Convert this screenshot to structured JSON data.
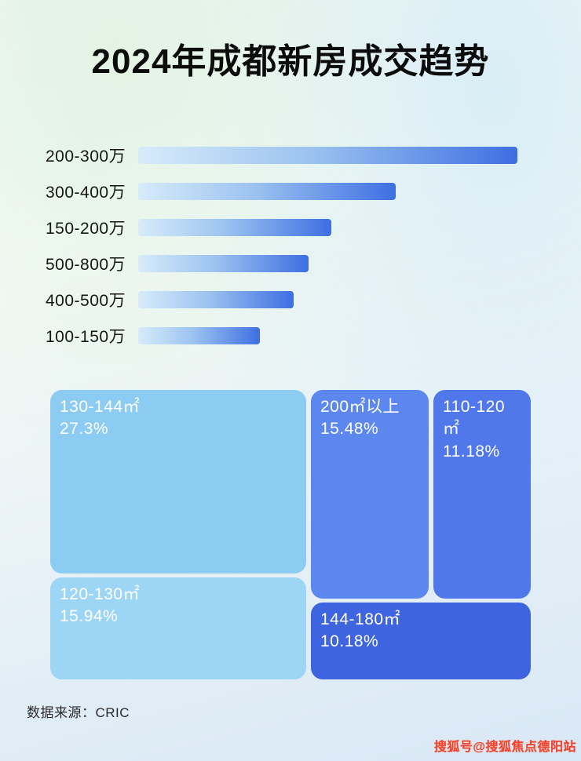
{
  "page": {
    "title": "2024年成都新房成交趋势",
    "source": "数据来源：CRIC",
    "watermark": "搜狐号@搜狐焦点德阳站"
  },
  "chart_data": [
    {
      "type": "bar",
      "orientation": "horizontal",
      "title": "2024年成都新房成交趋势",
      "categories": [
        "200-300万",
        "300-400万",
        "150-200万",
        "500-800万",
        "400-500万",
        "100-150万"
      ],
      "values": [
        100,
        68,
        51,
        45,
        41,
        32
      ],
      "value_note": "relative bar lengths (no numeric axis or data labels shown in image)",
      "xlabel": "",
      "ylabel": "",
      "grid": false,
      "legend": false,
      "bar_gradient": [
        "#d7ebfa",
        "#3e6fe2"
      ]
    },
    {
      "type": "treemap",
      "title": "",
      "items": [
        {
          "label": "130-144㎡",
          "value_pct": 27.3,
          "display": "27.3%",
          "color": "#8ccbf2"
        },
        {
          "label": "120-130㎡",
          "value_pct": 15.94,
          "display": "15.94%",
          "color": "#9dd5f4"
        },
        {
          "label": "200㎡以上",
          "value_pct": 15.48,
          "display": "15.48%",
          "color": "#5c87ef"
        },
        {
          "label": "110-120㎡",
          "value_pct": 11.18,
          "display": "11.18%",
          "color": "#5078ea"
        },
        {
          "label": "144-180㎡",
          "value_pct": 10.18,
          "display": "10.18%",
          "color": "#3f64df"
        }
      ]
    }
  ]
}
